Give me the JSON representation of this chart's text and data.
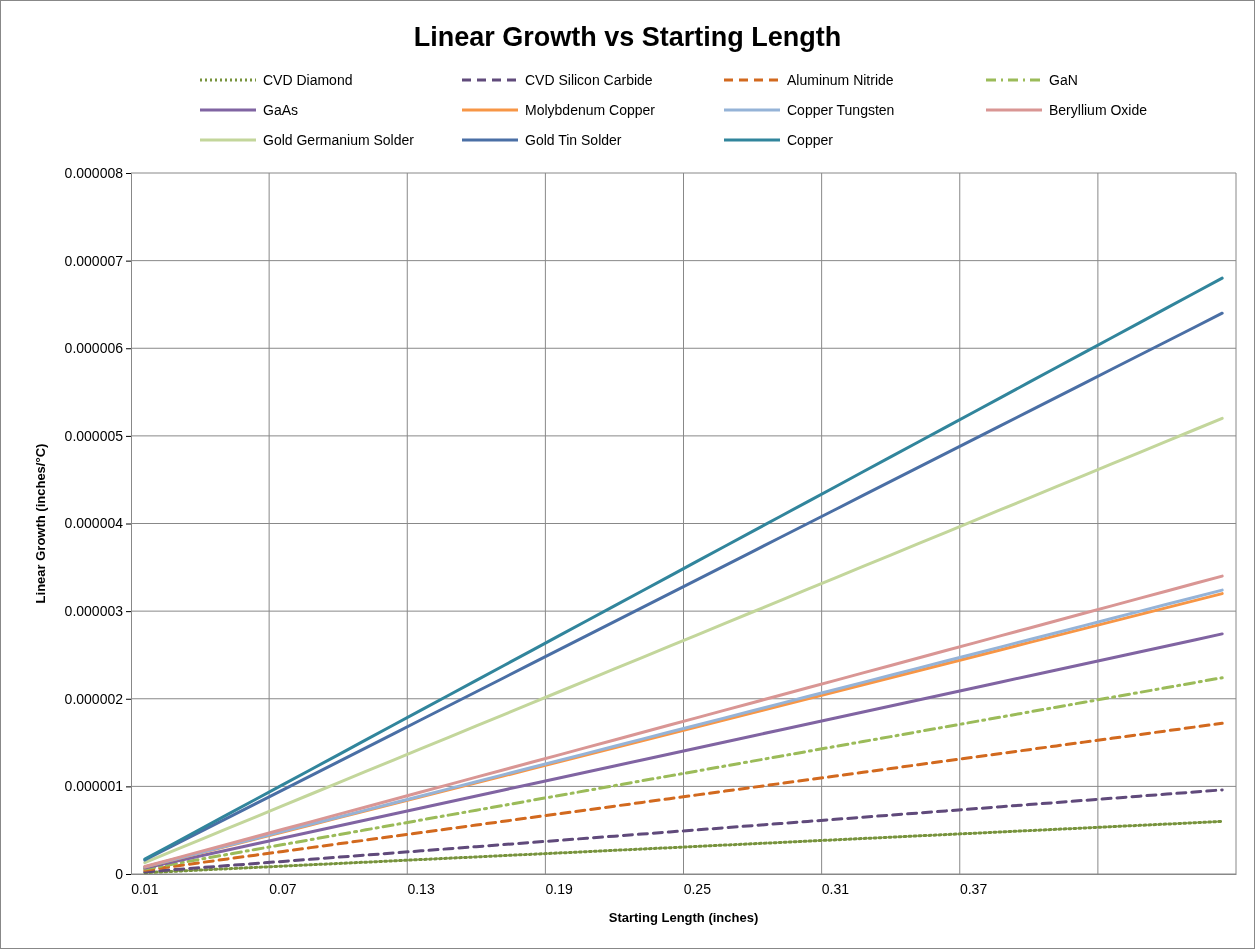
{
  "chart_data": {
    "type": "line",
    "title": "Linear Growth vs Starting Length",
    "xlabel": "Starting Length (inches)",
    "ylabel": "Linear Growth (inches/°C)",
    "categories": [
      "0.01",
      null,
      null,
      null,
      null,
      "0.07",
      null,
      null,
      null,
      null,
      "0.13",
      null,
      null,
      null,
      null,
      "0.19",
      null,
      null,
      null,
      null,
      "0.25",
      null,
      null,
      null,
      null,
      "0.31",
      null,
      null,
      null,
      null,
      "0.37",
      null,
      null,
      null,
      null,
      null,
      null,
      null,
      null,
      null
    ],
    "ylim": [
      0,
      8e-06
    ],
    "yticks": [
      0,
      {
        "value": 1e-06,
        "label": "0.000001"
      },
      {
        "value": 2e-06,
        "label": "0.000002"
      },
      {
        "value": 3e-06,
        "label": "0.000003"
      },
      {
        "value": 4e-06,
        "label": "0.000004"
      },
      {
        "value": 5e-06,
        "label": "0.000005"
      },
      {
        "value": 6e-06,
        "label": "0.000006"
      },
      {
        "value": 7e-06,
        "label": "0.000007"
      },
      {
        "value": 8e-06,
        "label": "0.000008"
      }
    ],
    "grid": true,
    "legend": "top",
    "marker": "none",
    "series": [
      {
        "name": "CVD Diamond",
        "color": "#77933c",
        "line_style": "dotted",
        "values": [
          1.5e-08,
          3e-08,
          4.5e-08,
          6e-08,
          7.5e-08,
          9e-08,
          1.05e-07,
          1.2e-07,
          1.35e-07,
          1.5e-07,
          1.65e-07,
          1.8e-07,
          1.95e-07,
          2.1e-07,
          2.25e-07,
          2.4e-07,
          2.55e-07,
          2.7e-07,
          2.85e-07,
          3e-07,
          3.15e-07,
          3.3e-07,
          3.45e-07,
          3.6e-07,
          3.75e-07,
          3.9e-07,
          4.05e-07,
          4.2e-07,
          4.35e-07,
          4.5e-07,
          4.65e-07,
          4.8e-07,
          4.95e-07,
          5.1e-07,
          5.25e-07,
          5.4e-07,
          5.55e-07,
          5.7e-07,
          5.85e-07,
          6e-07
        ]
      },
      {
        "name": "CVD Silicon Carbide",
        "color": "#604a7b",
        "line_style": "dashed",
        "values": [
          2.4e-08,
          4.8e-08,
          7.2e-08,
          9.6e-08,
          1.2e-07,
          1.44e-07,
          1.68e-07,
          1.92e-07,
          2.16e-07,
          2.4e-07,
          2.64e-07,
          2.88e-07,
          3.12e-07,
          3.36e-07,
          3.6e-07,
          3.84e-07,
          4.08e-07,
          4.32e-07,
          4.56e-07,
          4.8e-07,
          5.04e-07,
          5.28e-07,
          5.52e-07,
          5.76e-07,
          6e-07,
          6.24e-07,
          6.48e-07,
          6.72e-07,
          6.96e-07,
          7.2e-07,
          7.44e-07,
          7.68e-07,
          7.92e-07,
          8.16e-07,
          8.4e-07,
          8.64e-07,
          8.88e-07,
          9.12e-07,
          9.36e-07,
          9.6e-07
        ]
      },
      {
        "name": "Aluminum Nitride",
        "color": "#d2691e",
        "line_style": "dashed",
        "values": [
          4.3e-08,
          8.6e-08,
          1.29e-07,
          1.72e-07,
          2.15e-07,
          2.58e-07,
          3.01e-07,
          3.44e-07,
          3.87e-07,
          4.3e-07,
          4.73e-07,
          5.16e-07,
          5.59e-07,
          6.02e-07,
          6.45e-07,
          6.88e-07,
          7.31e-07,
          7.74e-07,
          8.17e-07,
          8.6e-07,
          9.03e-07,
          9.46e-07,
          9.89e-07,
          1.032e-06,
          1.075e-06,
          1.118e-06,
          1.161e-06,
          1.204e-06,
          1.247e-06,
          1.29e-06,
          1.333e-06,
          1.376e-06,
          1.419e-06,
          1.462e-06,
          1.505e-06,
          1.548e-06,
          1.591e-06,
          1.634e-06,
          1.677e-06,
          1.72e-06
        ]
      },
      {
        "name": "GaN",
        "color": "#9bbb59",
        "line_style": "dashdot",
        "values": [
          5.6e-08,
          1.12e-07,
          1.68e-07,
          2.24e-07,
          2.8e-07,
          3.36e-07,
          3.92e-07,
          4.48e-07,
          5.04e-07,
          5.6e-07,
          6.16e-07,
          6.72e-07,
          7.28e-07,
          7.84e-07,
          8.4e-07,
          8.96e-07,
          9.52e-07,
          1.008e-06,
          1.064e-06,
          1.12e-06,
          1.176e-06,
          1.232e-06,
          1.288e-06,
          1.344e-06,
          1.4e-06,
          1.456e-06,
          1.512e-06,
          1.568e-06,
          1.624e-06,
          1.68e-06,
          1.736e-06,
          1.792e-06,
          1.848e-06,
          1.904e-06,
          1.96e-06,
          2.016e-06,
          2.072e-06,
          2.128e-06,
          2.184e-06,
          2.24e-06
        ]
      },
      {
        "name": "GaAs",
        "color": "#8064a2",
        "line_style": "solid",
        "values": [
          6.85e-08,
          1.37e-07,
          2.055e-07,
          2.74e-07,
          3.425e-07,
          4.11e-07,
          4.795e-07,
          5.48e-07,
          6.165e-07,
          6.85e-07,
          7.535e-07,
          8.22e-07,
          8.905e-07,
          9.59e-07,
          1.0275e-06,
          1.096e-06,
          1.1645e-06,
          1.233e-06,
          1.3015e-06,
          1.37e-06,
          1.4385e-06,
          1.507e-06,
          1.5755e-06,
          1.644e-06,
          1.7125e-06,
          1.781e-06,
          1.8495e-06,
          1.918e-06,
          1.9865e-06,
          2.055e-06,
          2.1235e-06,
          2.192e-06,
          2.2605e-06,
          2.329e-06,
          2.3975e-06,
          2.466e-06,
          2.5345e-06,
          2.603e-06,
          2.6715e-06,
          2.74e-06
        ]
      },
      {
        "name": "Molybdenum Copper",
        "color": "#f79646",
        "line_style": "solid",
        "values": [
          8e-08,
          1.6e-07,
          2.4e-07,
          3.2e-07,
          4e-07,
          4.8e-07,
          5.6e-07,
          6.4e-07,
          7.2e-07,
          8e-07,
          8.8e-07,
          9.6e-07,
          1.04e-06,
          1.12e-06,
          1.2e-06,
          1.28e-06,
          1.36e-06,
          1.44e-06,
          1.52e-06,
          1.6e-06,
          1.68e-06,
          1.76e-06,
          1.84e-06,
          1.92e-06,
          2e-06,
          2.08e-06,
          2.16e-06,
          2.24e-06,
          2.32e-06,
          2.4e-06,
          2.48e-06,
          2.56e-06,
          2.64e-06,
          2.72e-06,
          2.8e-06,
          2.88e-06,
          2.96e-06,
          3.04e-06,
          3.12e-06,
          3.2e-06
        ]
      },
      {
        "name": "Copper Tungsten",
        "color": "#95b3d7",
        "line_style": "solid",
        "values": [
          8.1e-08,
          1.62e-07,
          2.43e-07,
          3.24e-07,
          4.05e-07,
          4.86e-07,
          5.67e-07,
          6.48e-07,
          7.29e-07,
          8.1e-07,
          8.91e-07,
          9.72e-07,
          1.053e-06,
          1.134e-06,
          1.215e-06,
          1.296e-06,
          1.377e-06,
          1.458e-06,
          1.539e-06,
          1.62e-06,
          1.701e-06,
          1.782e-06,
          1.863e-06,
          1.944e-06,
          2.025e-06,
          2.106e-06,
          2.187e-06,
          2.268e-06,
          2.349e-06,
          2.43e-06,
          2.511e-06,
          2.592e-06,
          2.673e-06,
          2.754e-06,
          2.835e-06,
          2.916e-06,
          2.997e-06,
          3.078e-06,
          3.159e-06,
          3.24e-06
        ]
      },
      {
        "name": "Beryllium Oxide",
        "color": "#d99694",
        "line_style": "solid",
        "values": [
          8.5e-08,
          1.7e-07,
          2.55e-07,
          3.4e-07,
          4.25e-07,
          5.1e-07,
          5.95e-07,
          6.8e-07,
          7.65e-07,
          8.5e-07,
          9.35e-07,
          1.02e-06,
          1.105e-06,
          1.19e-06,
          1.275e-06,
          1.36e-06,
          1.445e-06,
          1.53e-06,
          1.615e-06,
          1.7e-06,
          1.785e-06,
          1.87e-06,
          1.955e-06,
          2.04e-06,
          2.125e-06,
          2.21e-06,
          2.295e-06,
          2.38e-06,
          2.465e-06,
          2.55e-06,
          2.635e-06,
          2.72e-06,
          2.805e-06,
          2.89e-06,
          2.975e-06,
          3.06e-06,
          3.145e-06,
          3.23e-06,
          3.315e-06,
          3.4e-06
        ]
      },
      {
        "name": "Gold Germanium Solder",
        "color": "#c3d69b",
        "line_style": "solid",
        "values": [
          1.3e-07,
          2.6e-07,
          3.9e-07,
          5.2e-07,
          6.5e-07,
          7.8e-07,
          9.1e-07,
          1.04e-06,
          1.17e-06,
          1.3e-06,
          1.43e-06,
          1.56e-06,
          1.69e-06,
          1.82e-06,
          1.95e-06,
          2.08e-06,
          2.21e-06,
          2.34e-06,
          2.47e-06,
          2.6e-06,
          2.73e-06,
          2.86e-06,
          2.99e-06,
          3.12e-06,
          3.25e-06,
          3.38e-06,
          3.51e-06,
          3.64e-06,
          3.77e-06,
          3.9e-06,
          4.03e-06,
          4.16e-06,
          4.29e-06,
          4.42e-06,
          4.55e-06,
          4.68e-06,
          4.81e-06,
          4.94e-06,
          5.07e-06,
          5.2e-06
        ]
      },
      {
        "name": "Gold Tin Solder",
        "color": "#4a6fa5",
        "line_style": "solid",
        "values": [
          1.6e-07,
          3.2e-07,
          4.8e-07,
          6.4e-07,
          8e-07,
          9.6e-07,
          1.12e-06,
          1.28e-06,
          1.44e-06,
          1.6e-06,
          1.76e-06,
          1.92e-06,
          2.08e-06,
          2.24e-06,
          2.4e-06,
          2.56e-06,
          2.72e-06,
          2.88e-06,
          3.04e-06,
          3.2e-06,
          3.36e-06,
          3.52e-06,
          3.68e-06,
          3.84e-06,
          4e-06,
          4.16e-06,
          4.32e-06,
          4.48e-06,
          4.64e-06,
          4.8e-06,
          4.96e-06,
          5.12e-06,
          5.28e-06,
          5.44e-06,
          5.6e-06,
          5.76e-06,
          5.92e-06,
          6.08e-06,
          6.24e-06,
          6.4e-06
        ]
      },
      {
        "name": "Copper",
        "color": "#31859c",
        "line_style": "solid",
        "values": [
          1.7e-07,
          3.4e-07,
          5.1e-07,
          6.8e-07,
          8.5e-07,
          1.02e-06,
          1.19e-06,
          1.36e-06,
          1.53e-06,
          1.7e-06,
          1.87e-06,
          2.04e-06,
          2.21e-06,
          2.38e-06,
          2.55e-06,
          2.72e-06,
          2.89e-06,
          3.06e-06,
          3.23e-06,
          3.4e-06,
          3.57e-06,
          3.74e-06,
          3.91e-06,
          4.08e-06,
          4.25e-06,
          4.42e-06,
          4.59e-06,
          4.76e-06,
          4.93e-06,
          5.1e-06,
          5.27e-06,
          5.44e-06,
          5.61e-06,
          5.78e-06,
          5.95e-06,
          6.12e-06,
          6.29e-06,
          6.46e-06,
          6.63e-06,
          6.8e-06
        ]
      }
    ]
  }
}
